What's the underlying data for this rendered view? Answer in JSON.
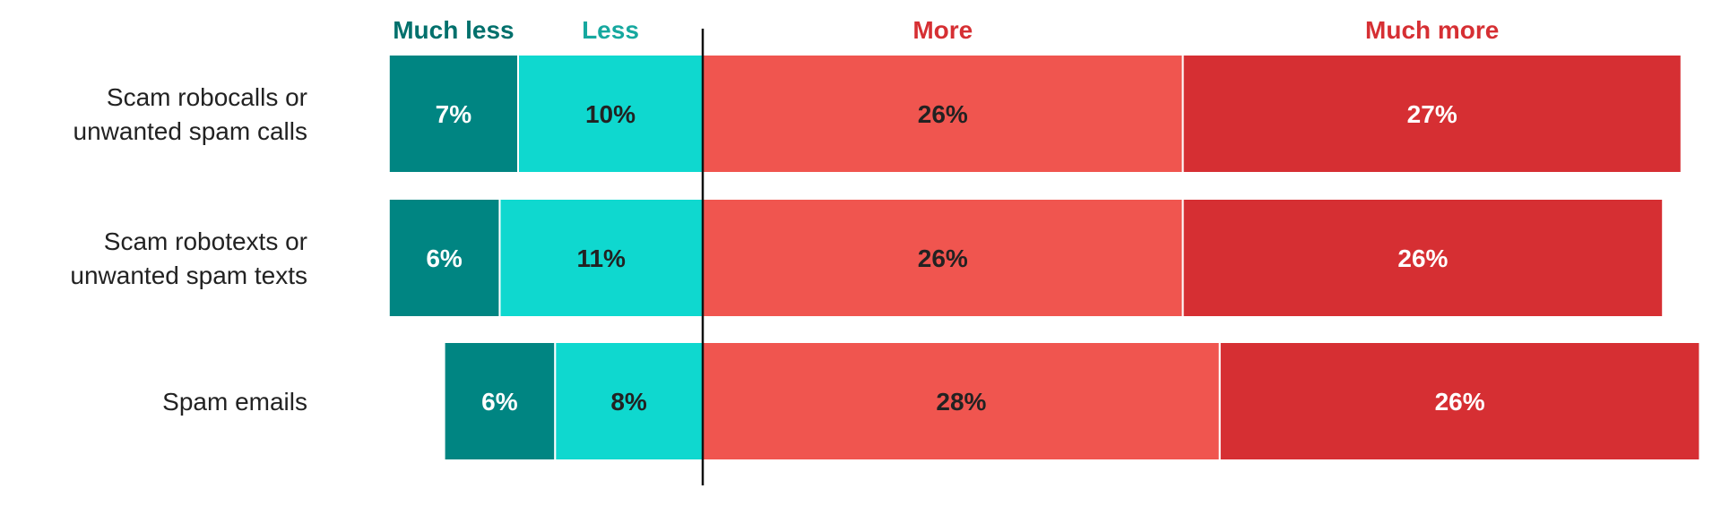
{
  "chart_data": {
    "type": "bar",
    "stacked": "diverging",
    "categories": [
      "Scam robocalls or unwanted spam calls",
      "Scam robotexts or unwanted spam texts",
      "Spam emails"
    ],
    "category_lines": [
      [
        "Scam robocalls or",
        "unwanted spam calls"
      ],
      [
        "Scam robotexts or",
        "unwanted spam texts"
      ],
      [
        "Spam emails"
      ]
    ],
    "series": [
      {
        "name": "Much less",
        "side": "negative",
        "color": "#008582",
        "text_color": "#ffffff",
        "values": [
          7,
          6,
          6
        ]
      },
      {
        "name": "Less",
        "side": "negative",
        "color": "#0fd8cf",
        "text_color": "#222222",
        "values": [
          10,
          11,
          8
        ]
      },
      {
        "name": "More",
        "side": "positive",
        "color": "#f0554f",
        "text_color": "#222222",
        "values": [
          26,
          26,
          28
        ]
      },
      {
        "name": "Much more",
        "side": "positive",
        "color": "#d62f33",
        "text_color": "#ffffff",
        "values": [
          27,
          26,
          26
        ]
      }
    ],
    "legend_colors": {
      "Much less": "#00706c",
      "Less": "#16a89f",
      "More": "#d62f33",
      "Much more": "#d62f33"
    },
    "value_suffix": "%",
    "legend_position": "top",
    "grid": false,
    "baseline_color": "#111111"
  }
}
